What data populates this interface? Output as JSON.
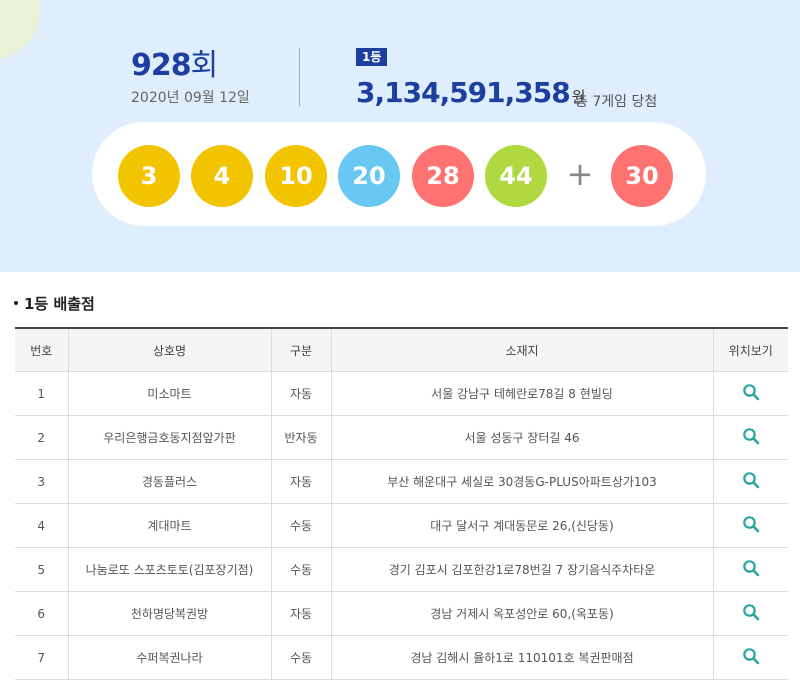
{
  "draw": {
    "round_number": "928",
    "round_unit": "회",
    "date": "2020년 09월 12일",
    "rank_badge": "1등",
    "prize_amount": "3,134,591,358",
    "prize_unit": "원",
    "winners_text": "총 7게임 당첨"
  },
  "numbers": {
    "main": [
      "3",
      "4",
      "10",
      "20",
      "28",
      "44"
    ],
    "plus": "+",
    "bonus": "30",
    "colors": {
      "yellow": "#f2c500",
      "blue": "#69c8f2",
      "red": "#ff7272",
      "green": "#b0d840"
    }
  },
  "section": {
    "title": "1등 배출점"
  },
  "table": {
    "headers": [
      "번호",
      "상호명",
      "구분",
      "소재지",
      "위치보기"
    ],
    "rows": [
      {
        "no": "1",
        "name": "미소마트",
        "type": "자동",
        "address": "서울 강남구 테헤란로78길 8 현빌딩"
      },
      {
        "no": "2",
        "name": "우리은행금호동지점앞가판",
        "type": "반자동",
        "address": "서울 성동구 장터길 46"
      },
      {
        "no": "3",
        "name": "경동플러스",
        "type": "자동",
        "address": "부산 해운대구 세실로 30경동G-PLUS아파트상가103"
      },
      {
        "no": "4",
        "name": "계대마트",
        "type": "수동",
        "address": "대구 달서구 계대동문로 26,(신당동)"
      },
      {
        "no": "5",
        "name": "나눔로또 스포츠토토(김포장기점)",
        "type": "수동",
        "address": "경기 김포시 김포한강1로78번길 7 장기음식주차타운"
      },
      {
        "no": "6",
        "name": "천하명당복권방",
        "type": "자동",
        "address": "경남 거제시 옥포성안로 60,(옥포동)"
      },
      {
        "no": "7",
        "name": "수퍼복권나라",
        "type": "수동",
        "address": "경남 김해시 율하1로 110101호 복권판매점"
      }
    ],
    "location_icon": "search-icon"
  }
}
